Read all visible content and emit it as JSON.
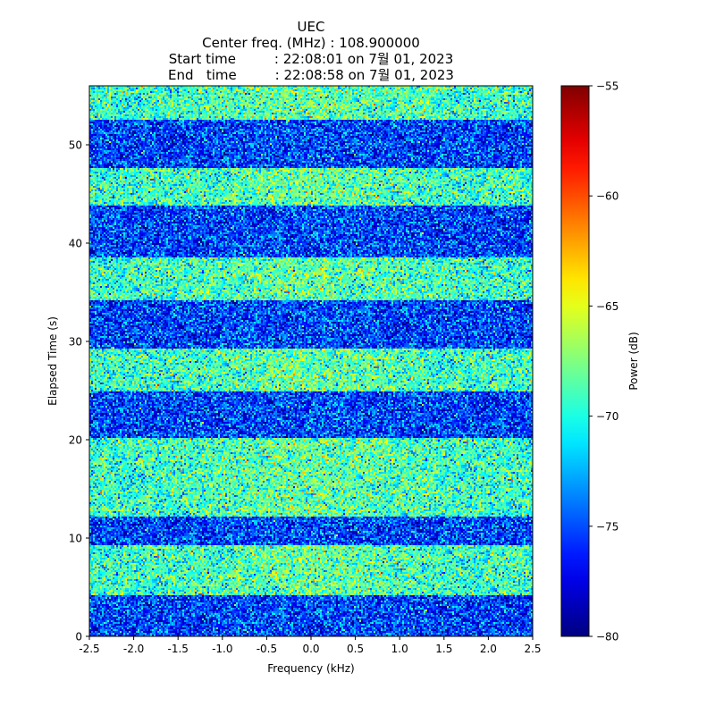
{
  "chart_data": {
    "type": "heatmap",
    "title_lines": [
      "UEC",
      "Center freq. (MHz) : 108.900000",
      "Start time         : 22:08:01 on 7월 01, 2023",
      "End   time         : 22:08:58 on 7월 01, 2023"
    ],
    "xlabel": "Frequency (kHz)",
    "ylabel": "Elapsed Time (s)",
    "colorbar_label": "Power (dB)",
    "xlim": [
      -2.5,
      2.5
    ],
    "ylim": [
      0,
      56
    ],
    "x_ticks": [
      -2.5,
      -2.0,
      -1.5,
      -1.0,
      -0.5,
      0.0,
      0.5,
      1.0,
      1.5,
      2.0,
      2.5
    ],
    "x_tick_labels": [
      "-2.5",
      "-2.0",
      "-1.5",
      "-1.0",
      "-0.5",
      "0.0",
      "0.5",
      "1.0",
      "1.5",
      "2.0",
      "2.5"
    ],
    "y_ticks": [
      0,
      10,
      20,
      30,
      40,
      50
    ],
    "y_tick_labels": [
      "0",
      "10",
      "20",
      "30",
      "40",
      "50"
    ],
    "colorbar_range": [
      -80,
      -55
    ],
    "colorbar_ticks": [
      -55,
      -60,
      -65,
      -70,
      -75,
      -80
    ],
    "colorbar_tick_labels": [
      "−55",
      "−60",
      "−65",
      "−70",
      "−75",
      "−80"
    ],
    "colormap": "jet",
    "time_bands": [
      {
        "start": 0.0,
        "end": 4.2,
        "level": "low",
        "mean_db": -75.5
      },
      {
        "start": 4.2,
        "end": 9.3,
        "level": "high",
        "mean_db": -69.5
      },
      {
        "start": 9.3,
        "end": 12.2,
        "level": "low",
        "mean_db": -75.5
      },
      {
        "start": 12.2,
        "end": 20.1,
        "level": "high",
        "mean_db": -69.5
      },
      {
        "start": 20.1,
        "end": 25.0,
        "level": "low",
        "mean_db": -75.5
      },
      {
        "start": 25.0,
        "end": 29.3,
        "level": "high",
        "mean_db": -69.5
      },
      {
        "start": 29.3,
        "end": 34.2,
        "level": "low",
        "mean_db": -75.5
      },
      {
        "start": 34.2,
        "end": 38.6,
        "level": "high",
        "mean_db": -69.5
      },
      {
        "start": 38.6,
        "end": 43.8,
        "level": "low",
        "mean_db": -75.5
      },
      {
        "start": 43.8,
        "end": 47.6,
        "level": "high",
        "mean_db": -69.5
      },
      {
        "start": 47.6,
        "end": 52.6,
        "level": "low",
        "mean_db": -75.5
      },
      {
        "start": 52.6,
        "end": 56.0,
        "level": "high",
        "mean_db": -69.5
      }
    ],
    "colors": {
      "axis": "#000000",
      "background": "#ffffff"
    }
  }
}
